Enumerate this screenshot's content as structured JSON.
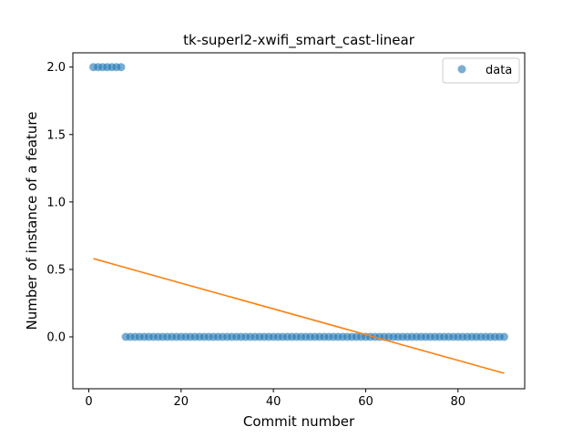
{
  "chart_data": {
    "type": "scatter",
    "title": "tk-superl2-xwifi_smart_cast-linear",
    "xlabel": "Commit number",
    "ylabel": "Number of instance of a feature",
    "xlim": [
      -3.45,
      94.45
    ],
    "ylim": [
      -0.3847,
      2.1059
    ],
    "x_ticks": [
      0,
      20,
      40,
      60,
      80
    ],
    "y_ticks": [
      0.0,
      0.5,
      1.0,
      1.5,
      2.0
    ],
    "x_tick_labels": [
      "0",
      "20",
      "40",
      "60",
      "80"
    ],
    "y_tick_labels": [
      "0.0",
      "0.5",
      "1.0",
      "1.5",
      "2.0"
    ],
    "grid": false,
    "legend": {
      "position": "top-right",
      "entries": [
        "data"
      ]
    },
    "series": [
      {
        "name": "data",
        "kind": "scatter",
        "color": "#1f77b4",
        "x": [
          1,
          2,
          3,
          4,
          5,
          6,
          7,
          8,
          9,
          10,
          11,
          12,
          13,
          14,
          15,
          16,
          17,
          18,
          19,
          20,
          21,
          22,
          23,
          24,
          25,
          26,
          27,
          28,
          29,
          30,
          31,
          32,
          33,
          34,
          35,
          36,
          37,
          38,
          39,
          40,
          41,
          42,
          43,
          44,
          45,
          46,
          47,
          48,
          49,
          50,
          51,
          52,
          53,
          54,
          55,
          56,
          57,
          58,
          59,
          60,
          61,
          62,
          63,
          64,
          65,
          66,
          67,
          68,
          69,
          70,
          71,
          72,
          73,
          74,
          75,
          76,
          77,
          78,
          79,
          80,
          81,
          82,
          83,
          84,
          85,
          86,
          87,
          88,
          89,
          90
        ],
        "y": [
          2,
          2,
          2,
          2,
          2,
          2,
          2,
          0,
          0,
          0,
          0,
          0,
          0,
          0,
          0,
          0,
          0,
          0,
          0,
          0,
          0,
          0,
          0,
          0,
          0,
          0,
          0,
          0,
          0,
          0,
          0,
          0,
          0,
          0,
          0,
          0,
          0,
          0,
          0,
          0,
          0,
          0,
          0,
          0,
          0,
          0,
          0,
          0,
          0,
          0,
          0,
          0,
          0,
          0,
          0,
          0,
          0,
          0,
          0,
          0,
          0,
          0,
          0,
          0,
          0,
          0,
          0,
          0,
          0,
          0,
          0,
          0,
          0,
          0,
          0,
          0,
          0,
          0,
          0,
          0,
          0,
          0,
          0,
          0,
          0,
          0,
          0,
          0,
          0,
          0
        ]
      },
      {
        "kind": "line",
        "color": "#ff7f0e",
        "x": [
          1,
          90
        ],
        "y": [
          0.58,
          -0.27
        ]
      }
    ]
  }
}
